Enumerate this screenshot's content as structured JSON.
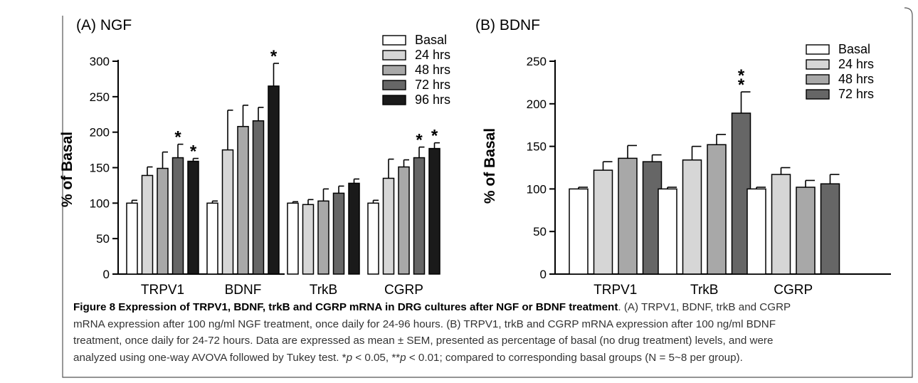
{
  "chart_data": [
    {
      "type": "bar",
      "title": "(A) NGF",
      "ylabel": "% of Basal",
      "xlabel": "",
      "ylim": [
        0,
        300
      ],
      "yticks": [
        0,
        50,
        100,
        150,
        200,
        250,
        300
      ],
      "categories": [
        "TRPV1",
        "BDNF",
        "TrkB",
        "CGRP"
      ],
      "legend_position": "top-right",
      "grid": false,
      "series": [
        {
          "name": "Basal",
          "color": "#ffffff",
          "values": [
            100,
            100,
            100,
            100
          ],
          "errors": [
            4,
            3,
            2,
            4
          ],
          "sig": [
            "",
            "",
            "",
            ""
          ]
        },
        {
          "name": "24 hrs",
          "color": "#d6d6d6",
          "values": [
            139,
            175,
            98,
            135
          ],
          "errors": [
            12,
            56,
            7,
            27
          ],
          "sig": [
            "",
            "",
            "",
            ""
          ]
        },
        {
          "name": "48 hrs",
          "color": "#a8a8a8",
          "values": [
            149,
            208,
            103,
            151
          ],
          "errors": [
            23,
            30,
            17,
            10
          ],
          "sig": [
            "",
            "",
            "",
            ""
          ]
        },
        {
          "name": "72 hrs",
          "color": "#666666",
          "values": [
            164,
            216,
            114,
            164
          ],
          "errors": [
            19,
            19,
            10,
            15
          ],
          "sig": [
            "*",
            "",
            "",
            "*"
          ]
        },
        {
          "name": "96 hrs",
          "color": "#1a1a1a",
          "values": [
            159,
            265,
            128,
            177
          ],
          "errors": [
            4,
            32,
            6,
            8
          ],
          "sig": [
            "*",
            "*",
            "",
            "*"
          ]
        }
      ]
    },
    {
      "type": "bar",
      "title": "(B) BDNF",
      "ylabel": "% of Basal",
      "xlabel": "",
      "ylim": [
        0,
        250
      ],
      "yticks": [
        0,
        50,
        100,
        150,
        200,
        250
      ],
      "categories": [
        "TRPV1",
        "TrkB",
        "CGRP"
      ],
      "legend_position": "top-right",
      "grid": false,
      "series": [
        {
          "name": "Basal",
          "color": "#ffffff",
          "values": [
            100,
            100,
            100
          ],
          "errors": [
            2,
            2,
            2
          ],
          "sig": [
            "",
            "",
            ""
          ]
        },
        {
          "name": "24 hrs",
          "color": "#d6d6d6",
          "values": [
            122,
            134,
            117
          ],
          "errors": [
            10,
            16,
            8
          ],
          "sig": [
            "",
            "",
            ""
          ]
        },
        {
          "name": "48 hrs",
          "color": "#a8a8a8",
          "values": [
            136,
            152,
            102
          ],
          "errors": [
            15,
            12,
            8
          ],
          "sig": [
            "",
            "",
            ""
          ]
        },
        {
          "name": "72 hrs",
          "color": "#666666",
          "values": [
            132,
            189,
            106
          ],
          "errors": [
            8,
            25,
            11
          ],
          "sig": [
            "",
            "**",
            ""
          ]
        }
      ]
    }
  ],
  "caption": {
    "title": "Figure 8 Expression of TRPV1, BDNF, trkB and CGRP mRNA in DRG cultures after NGF or BDNF treatment",
    "line1_rest": ". (A) TRPV1, BDNF, trkB and CGRP",
    "line2": "mRNA expression after 100 ng/ml NGF treatment, once daily for 24-96 hours. (B) TRPV1, trkB and CGRP mRNA expression after 100 ng/ml BDNF",
    "line3": "treatment, once daily for 24-72 hours. Data are expressed as mean ± SEM, presented as percentage of basal (no drug treatment) levels, and were",
    "line4_a": "analyzed using one-way AVOVA followed by Tukey test. *",
    "p1": "p",
    "line4_b": " < 0.05, **",
    "p2": "p",
    "line4_c": " < 0.01; compared to corresponding basal groups (N = 5~8 per group)."
  }
}
